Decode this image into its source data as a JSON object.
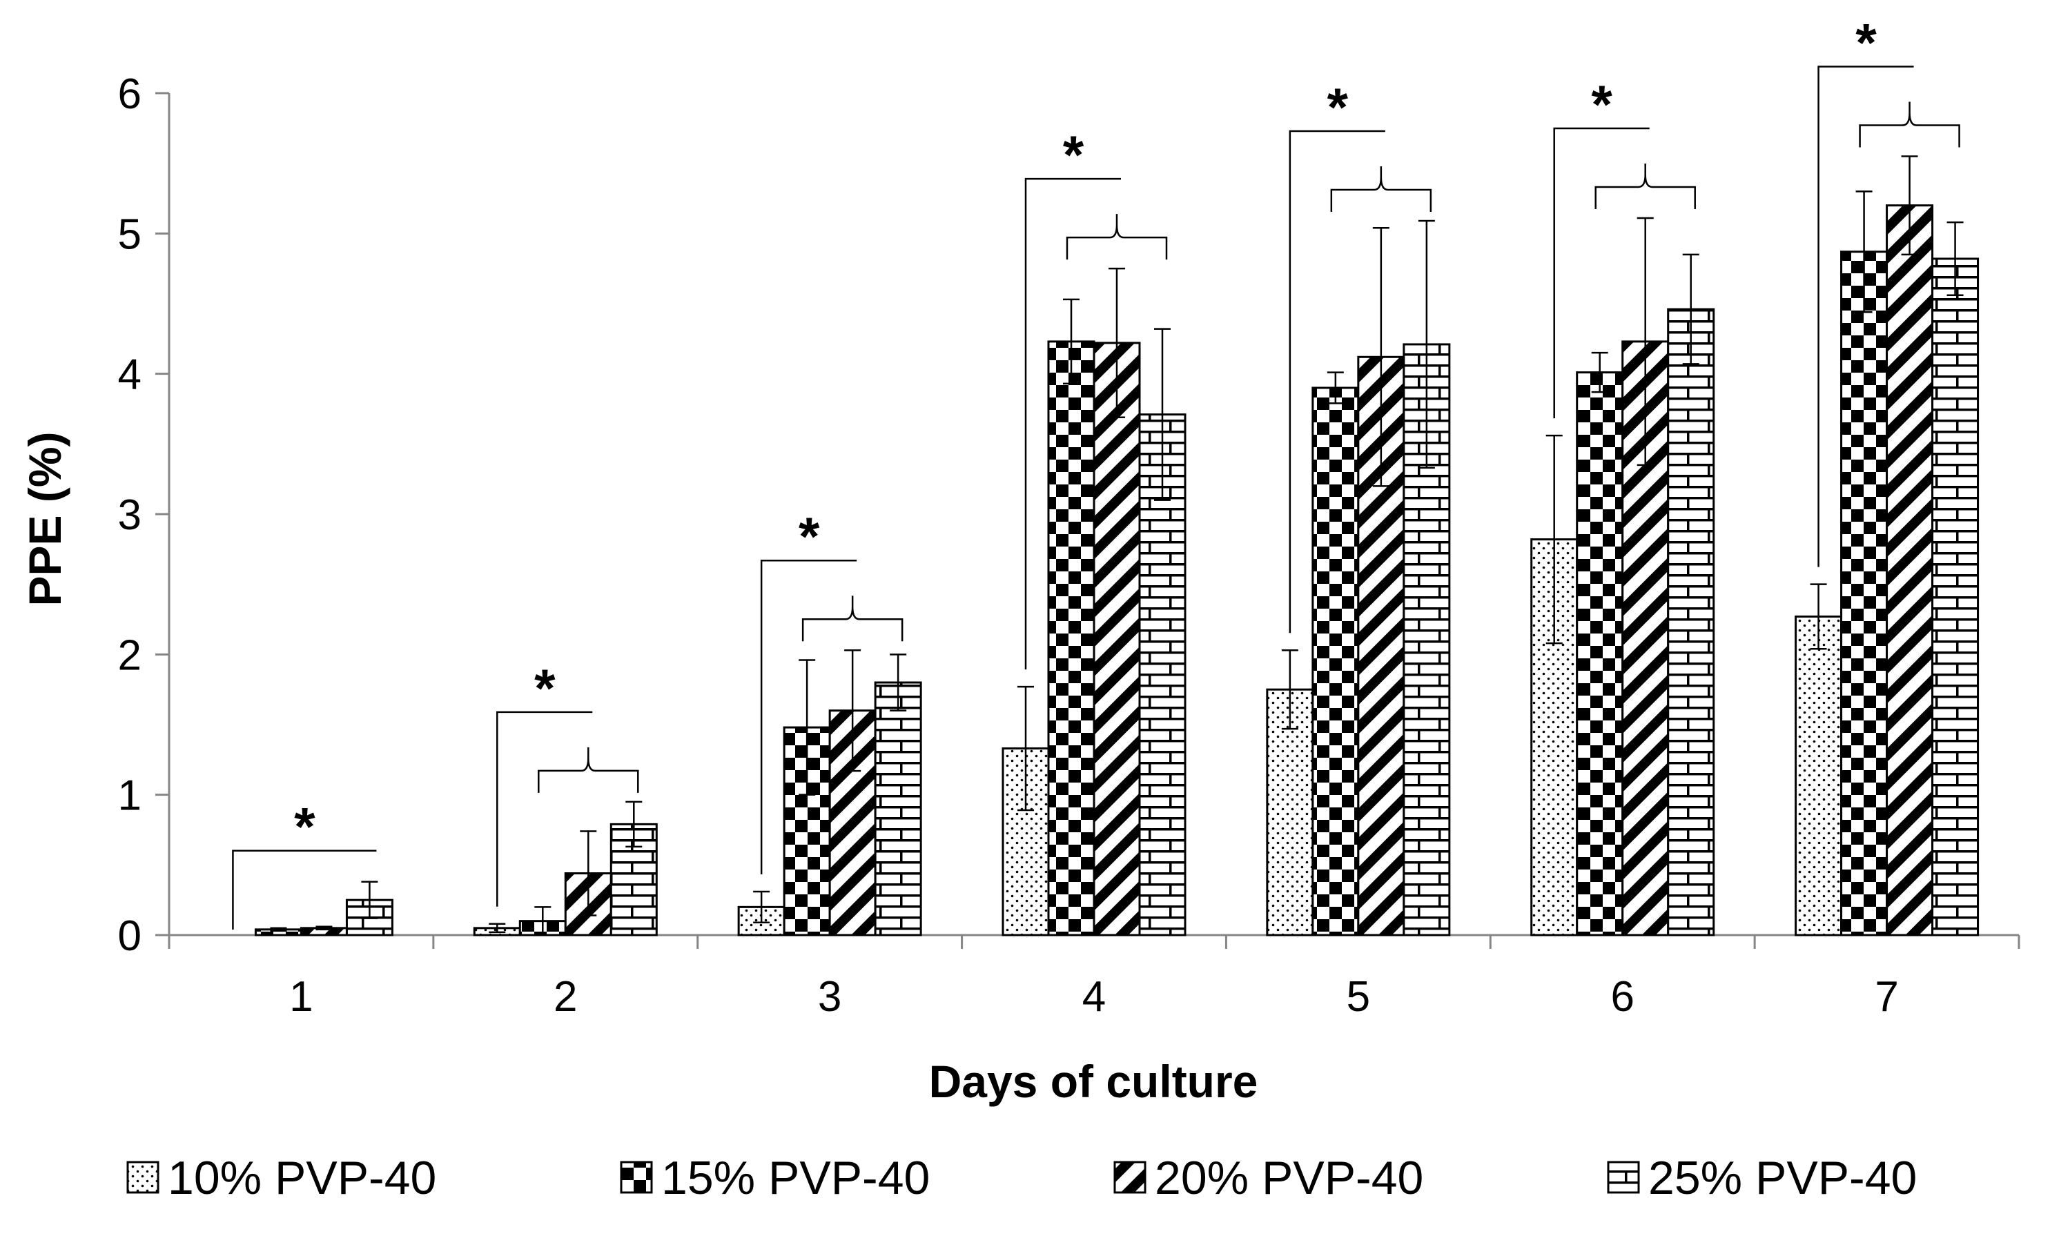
{
  "chart_data": {
    "type": "bar",
    "title": "",
    "xlabel": "Days of culture",
    "ylabel": "PPE (%)",
    "ylim": [
      0,
      6
    ],
    "yticks": [
      "0",
      "1",
      "2",
      "3",
      "4",
      "5",
      "6"
    ],
    "categories": [
      "1",
      "2",
      "3",
      "4",
      "5",
      "6",
      "7"
    ],
    "grid": false,
    "legend_position": "bottom",
    "series": [
      {
        "name": "10% PVP-40",
        "pattern": "dots",
        "values": [
          0.0,
          0.05,
          0.2,
          1.33,
          1.75,
          2.82,
          2.27
        ],
        "errors": [
          0.0,
          0.03,
          0.11,
          0.44,
          0.28,
          0.74,
          0.23
        ]
      },
      {
        "name": "15% PVP-40",
        "pattern": "checker",
        "values": [
          0.04,
          0.1,
          1.48,
          4.23,
          3.9,
          4.01,
          4.87
        ],
        "errors": [
          0.01,
          0.1,
          0.48,
          0.3,
          0.11,
          0.14,
          0.43
        ]
      },
      {
        "name": "20% PVP-40",
        "pattern": "diagonal",
        "values": [
          0.05,
          0.44,
          1.6,
          4.22,
          4.12,
          4.23,
          5.2
        ],
        "errors": [
          0.01,
          0.3,
          0.43,
          0.53,
          0.92,
          0.88,
          0.35
        ]
      },
      {
        "name": "25% PVP-40",
        "pattern": "brick",
        "values": [
          0.25,
          0.79,
          1.8,
          3.71,
          4.21,
          4.46,
          4.82
        ],
        "errors": [
          0.13,
          0.16,
          0.2,
          0.61,
          0.88,
          0.39,
          0.26
        ]
      }
    ],
    "annotations": [
      {
        "category": "1",
        "text": "*",
        "brace": false
      },
      {
        "category": "2",
        "text": "*",
        "brace": true
      },
      {
        "category": "3",
        "text": "*",
        "brace": true
      },
      {
        "category": "4",
        "text": "*",
        "brace": true
      },
      {
        "category": "5",
        "text": "*",
        "brace": true
      },
      {
        "category": "6",
        "text": "*",
        "brace": true
      },
      {
        "category": "7",
        "text": "*",
        "brace": true
      }
    ]
  }
}
